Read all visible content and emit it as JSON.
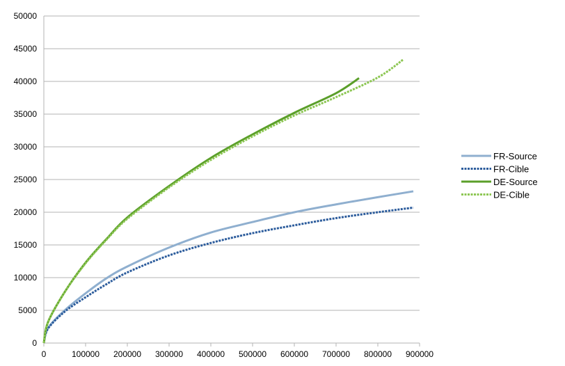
{
  "chart_data": {
    "type": "line",
    "title": "",
    "xlabel": "",
    "ylabel": "",
    "xlim": [
      0,
      900000
    ],
    "ylim": [
      0,
      50000
    ],
    "x_ticks": [
      "0",
      "100000",
      "200000",
      "300000",
      "400000",
      "500000",
      "600000",
      "700000",
      "800000",
      "900000"
    ],
    "y_ticks": [
      "0",
      "5000",
      "10000",
      "15000",
      "20000",
      "25000",
      "30000",
      "35000",
      "40000",
      "45000",
      "50000"
    ],
    "grid": "horizontal",
    "legend_position": "right",
    "series": [
      {
        "name": "FR-Source",
        "color": "#8FAFCF",
        "style": "solid",
        "x": [
          0,
          10000,
          50000,
          100000,
          150000,
          200000,
          300000,
          400000,
          500000,
          600000,
          700000,
          800000,
          885000
        ],
        "y": [
          0,
          2300,
          5000,
          7600,
          9900,
          11700,
          14600,
          16900,
          18500,
          20000,
          21200,
          22300,
          23200
        ]
      },
      {
        "name": "FR-Cible",
        "color": "#2C5C9C",
        "style": "dotted",
        "x": [
          0,
          10000,
          50000,
          100000,
          150000,
          200000,
          300000,
          400000,
          500000,
          600000,
          700000,
          800000,
          885000
        ],
        "y": [
          0,
          2200,
          4800,
          7000,
          9000,
          10800,
          13400,
          15300,
          16800,
          18000,
          19100,
          20000,
          20700
        ]
      },
      {
        "name": "DE-Source",
        "color": "#5B9F2A",
        "style": "solid",
        "x": [
          0,
          10000,
          50000,
          100000,
          150000,
          200000,
          300000,
          400000,
          500000,
          600000,
          700000,
          755000
        ],
        "y": [
          0,
          3200,
          7800,
          12300,
          15900,
          19200,
          24000,
          28300,
          31900,
          35200,
          38200,
          40500
        ]
      },
      {
        "name": "DE-Cible",
        "color": "#8CC652",
        "style": "dotted",
        "x": [
          0,
          10000,
          50000,
          100000,
          150000,
          200000,
          300000,
          400000,
          500000,
          600000,
          700000,
          800000,
          860000
        ],
        "y": [
          0,
          3200,
          7800,
          12200,
          15800,
          19000,
          23800,
          28000,
          31600,
          34800,
          37600,
          40600,
          43300
        ]
      }
    ]
  }
}
